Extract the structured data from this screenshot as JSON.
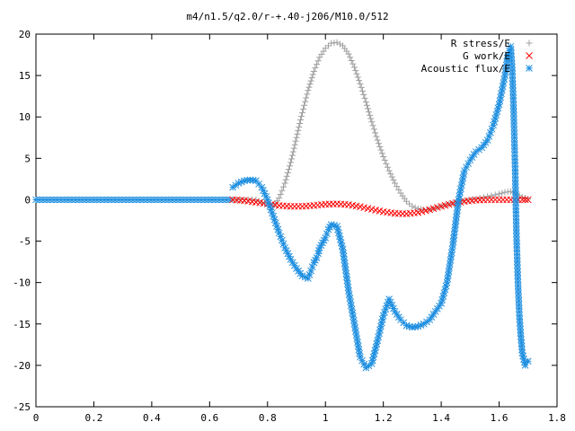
{
  "chart_data": {
    "type": "scatter",
    "title": "m4/n1.5/q2.0/r-+.40-j206/M10.0/512",
    "xlabel": "",
    "ylabel": "",
    "xlim": [
      0,
      1.8
    ],
    "ylim": [
      -25,
      20
    ],
    "grid": false,
    "legend_position": "top-right",
    "x_ticks": [
      "0",
      "0.2",
      "0.4",
      "0.6",
      "0.8",
      "1",
      "1.2",
      "1.4",
      "1.6",
      "1.8"
    ],
    "y_ticks": [
      "20",
      "15",
      "10",
      "5",
      "0",
      "-5",
      "-10",
      "-15",
      "-20",
      "-25"
    ],
    "series": [
      {
        "name": "R stress/E",
        "marker": "+",
        "color": "#a0a0a0",
        "x": [
          0.68,
          0.72,
          0.76,
          0.8,
          0.82,
          0.84,
          0.86,
          0.88,
          0.9,
          0.92,
          0.94,
          0.96,
          0.98,
          1.0,
          1.02,
          1.04,
          1.06,
          1.08,
          1.1,
          1.12,
          1.14,
          1.16,
          1.18,
          1.2,
          1.22,
          1.24,
          1.26,
          1.28,
          1.3,
          1.32,
          1.34,
          1.36,
          1.4,
          1.44,
          1.48,
          1.52,
          1.56,
          1.6,
          1.62,
          1.64,
          1.66,
          1.68,
          1.7
        ],
        "y": [
          0.0,
          0.0,
          0.0,
          -0.6,
          -0.8,
          0.2,
          2.0,
          4.5,
          7.5,
          10.5,
          13.2,
          15.5,
          17.2,
          18.3,
          18.9,
          19.0,
          18.6,
          17.6,
          16.0,
          14.0,
          11.8,
          9.4,
          7.2,
          5.2,
          3.5,
          2.0,
          0.8,
          -0.2,
          -0.8,
          -1.1,
          -1.2,
          -1.2,
          -0.8,
          -0.4,
          -0.1,
          0.1,
          0.4,
          0.7,
          0.9,
          1.0,
          0.7,
          0.3,
          0.1
        ]
      },
      {
        "name": "G work/E",
        "marker": "x",
        "color": "#ff0000",
        "x": [
          0.68,
          0.72,
          0.76,
          0.8,
          0.84,
          0.88,
          0.92,
          0.96,
          1.0,
          1.04,
          1.08,
          1.12,
          1.16,
          1.2,
          1.24,
          1.28,
          1.32,
          1.36,
          1.4,
          1.44,
          1.48,
          1.52,
          1.56,
          1.6,
          1.64,
          1.68,
          1.7
        ],
        "y": [
          0.0,
          -0.1,
          -0.3,
          -0.5,
          -0.7,
          -0.8,
          -0.8,
          -0.7,
          -0.55,
          -0.5,
          -0.6,
          -0.85,
          -1.15,
          -1.45,
          -1.65,
          -1.7,
          -1.55,
          -1.2,
          -0.8,
          -0.45,
          -0.2,
          -0.05,
          0.0,
          0.0,
          0.0,
          0.0,
          0.0
        ]
      },
      {
        "name": "Acoustic flux/E",
        "marker": "*",
        "color": "#1f8fe0",
        "x": [
          0.68,
          0.7,
          0.72,
          0.74,
          0.76,
          0.78,
          0.8,
          0.82,
          0.84,
          0.86,
          0.88,
          0.9,
          0.92,
          0.94,
          0.95,
          0.96,
          0.97,
          0.975,
          0.98,
          0.99,
          1.0,
          1.01,
          1.02,
          1.04,
          1.06,
          1.08,
          1.1,
          1.12,
          1.14,
          1.16,
          1.18,
          1.2,
          1.22,
          1.24,
          1.26,
          1.28,
          1.3,
          1.32,
          1.34,
          1.36,
          1.38,
          1.4,
          1.42,
          1.44,
          1.46,
          1.48,
          1.5,
          1.52,
          1.54,
          1.56,
          1.58,
          1.6,
          1.62,
          1.63,
          1.64,
          1.645,
          1.65,
          1.655,
          1.66,
          1.665,
          1.67,
          1.675,
          1.68,
          1.69,
          1.7
        ],
        "y": [
          1.5,
          2.0,
          2.3,
          2.4,
          2.3,
          1.5,
          0.0,
          -2.0,
          -4.0,
          -5.8,
          -7.2,
          -8.3,
          -9.2,
          -9.5,
          -8.6,
          -7.6,
          -7.0,
          -6.5,
          -5.8,
          -5.2,
          -4.6,
          -3.6,
          -3.0,
          -3.2,
          -6.0,
          -11.0,
          -15.0,
          -19.0,
          -20.3,
          -19.8,
          -17.0,
          -14.0,
          -12.0,
          -13.5,
          -14.5,
          -15.2,
          -15.4,
          -15.3,
          -15.0,
          -14.5,
          -13.5,
          -12.5,
          -10.0,
          -5.5,
          0.0,
          3.5,
          4.8,
          5.8,
          6.3,
          7.2,
          9.0,
          11.5,
          15.0,
          17.5,
          18.5,
          16.0,
          11.0,
          4.0,
          -4.5,
          -10.0,
          -14.0,
          -16.5,
          -18.5,
          -20.0,
          -19.5
        ]
      }
    ]
  }
}
